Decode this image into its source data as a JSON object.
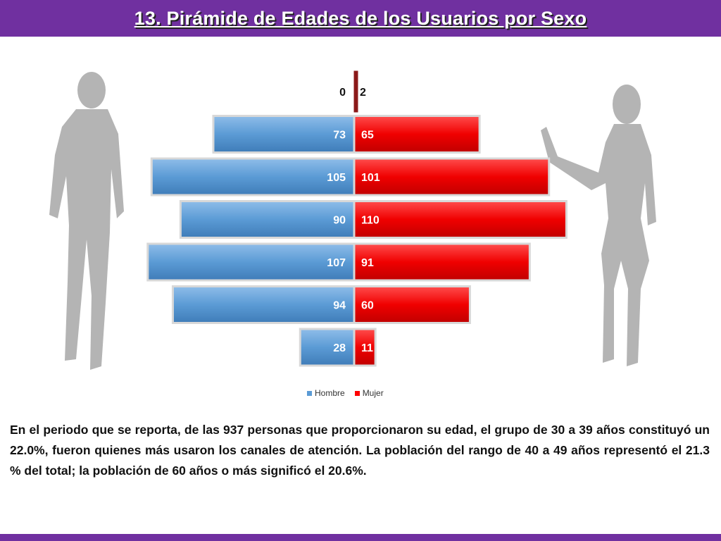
{
  "title": "13. Pirámide de Edades de los Usuarios por Sexo",
  "chart_data": {
    "type": "bar",
    "orientation": "horizontal-population-pyramid",
    "series": [
      {
        "name": "Hombre",
        "color": "#5b9bd5",
        "values": [
          0,
          73,
          105,
          90,
          107,
          94,
          28
        ]
      },
      {
        "name": "Mujer",
        "color": "#ff0000",
        "values": [
          2,
          65,
          101,
          110,
          91,
          60,
          11
        ]
      }
    ],
    "data_labels": {
      "Hombre": [
        "0",
        "73",
        "105",
        "90",
        "107",
        "94",
        "28"
      ],
      "Mujer": [
        "2",
        "65",
        "101",
        "110",
        "91",
        "60",
        "11"
      ]
    },
    "legend_position": "bottom",
    "xlim": [
      -110,
      110
    ]
  },
  "legend": {
    "hombre": "Hombre",
    "mujer": "Mujer"
  },
  "paragraph": "En el periodo que se reporta, de las 937 personas que proporcionaron su edad, el grupo de 30 a 39 años constituyó un 22.0%, fueron quienes más usaron los canales de atención. La población del rango de 40 a 49 años representó el 21.3 % del total; la población de 60 años o más significó el 20.6%."
}
